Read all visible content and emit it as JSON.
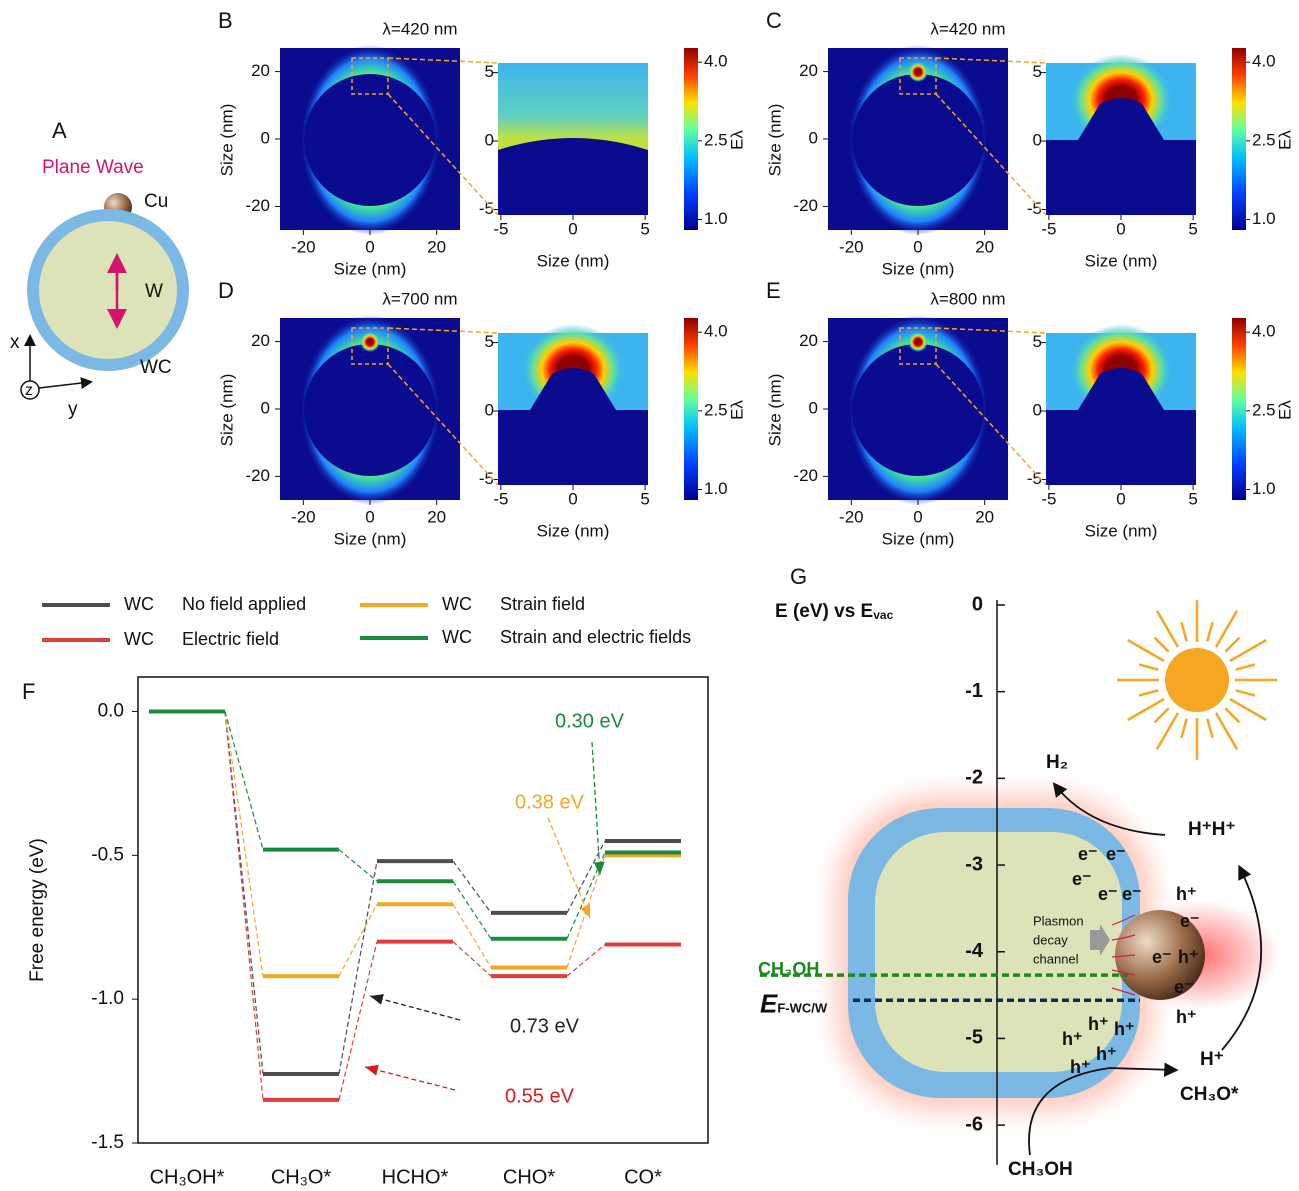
{
  "panel_a": {
    "letter": "A",
    "title": "Plane Wave",
    "cu": "Cu",
    "w": "W",
    "wc": "WC",
    "axis_x": "x",
    "axis_z": "z",
    "axis_y": "y"
  },
  "heatmap_axes": {
    "xlim": [
      -27,
      27
    ],
    "ylim": [
      -27,
      27
    ],
    "ticks": [
      -20,
      0,
      20
    ],
    "zoom_xlim": [
      -5.2,
      5.2
    ],
    "zoom_ylim": [
      -5.4,
      5.7
    ],
    "zoom_ticks": [
      -5,
      0,
      5
    ],
    "axis_label": "Size (nm)",
    "colorbar_label": "Eλ",
    "colorbar_lim": [
      0.8,
      4.27
    ],
    "colorbar_ticks": [
      {
        "value": 1,
        "label": "1.0"
      },
      2.5,
      {
        "value": 4,
        "label": "4.0"
      }
    ]
  },
  "heatmaps": [
    {
      "letter": "B",
      "title": "λ=420 nm"
    },
    {
      "letter": "C",
      "title": "λ=420 nm"
    },
    {
      "letter": "D",
      "title": "λ=700 nm"
    },
    {
      "letter": "E",
      "title": "λ=800 nm"
    }
  ],
  "chart_data": {
    "type": "energy_levels",
    "panel": "F",
    "y_label": "Free energy (eV)",
    "legend_prefix": "WC",
    "categories": [
      "CH₃OH*",
      "CH₃O*",
      "HCHO*",
      "CHO*",
      "CO*"
    ],
    "series": [
      {
        "name": "No field applied",
        "color": "#4d4d4d",
        "values": [
          0,
          -1.26,
          -0.52,
          -0.7,
          -0.45
        ]
      },
      {
        "name": "Electric field",
        "color": "#e03c3c",
        "values": [
          0,
          -1.35,
          -0.8,
          -0.92,
          -0.81
        ]
      },
      {
        "name": "Strain field",
        "color": "#f5a623",
        "values": [
          0,
          -0.92,
          -0.67,
          -0.89,
          -0.5
        ]
      },
      {
        "name": "Strain and electric fields",
        "color": "#1a8a3c",
        "values": [
          0,
          -0.48,
          -0.59,
          -0.79,
          -0.49
        ]
      }
    ],
    "ylim": [
      -1.5,
      0.12
    ],
    "yticks": [
      {
        "value": 0,
        "label": "0.0"
      },
      -0.5,
      {
        "value": -1,
        "label": "-1.0"
      },
      -1.5
    ],
    "annotations": [
      {
        "text": "0.30 eV",
        "color": "#1a8a3c"
      },
      {
        "text": "0.38 eV",
        "color": "#f5a623"
      },
      {
        "text": "0.73 eV",
        "color": "#222222"
      },
      {
        "text": "0.55 eV",
        "color": "#e01818"
      }
    ]
  },
  "panel_g": {
    "letter": "G",
    "axis_title": "E (eV) vs E",
    "axis_sub": "vac",
    "ylim": [
      -6.46,
      0
    ],
    "yticks": [
      0,
      -1,
      -2,
      -3,
      -4,
      -5,
      -6
    ],
    "levels": [
      {
        "label": "CH₃OH",
        "value": -4.27,
        "color": "#1a8a1a"
      },
      {
        "label": "E",
        "sub": "F-WC/W",
        "value": -4.56,
        "color": "#0d2a5a"
      }
    ],
    "h2": "H₂",
    "hh": "H⁺H⁺",
    "h_plus": "H⁺",
    "ch3o": "CH₃O*",
    "ch3oh": "CH₃OH",
    "plasmon": [
      "Plasmon",
      "decay",
      "channel"
    ],
    "electrons": [
      "e⁻",
      "e⁻",
      "e⁻",
      "e⁻",
      "e⁻",
      "e⁻",
      "e⁻",
      "e⁻"
    ],
    "holes": [
      "h⁺",
      "h⁺",
      "h⁺",
      "h⁺",
      "h⁺",
      "h⁺",
      "h⁺",
      "h⁺"
    ]
  }
}
